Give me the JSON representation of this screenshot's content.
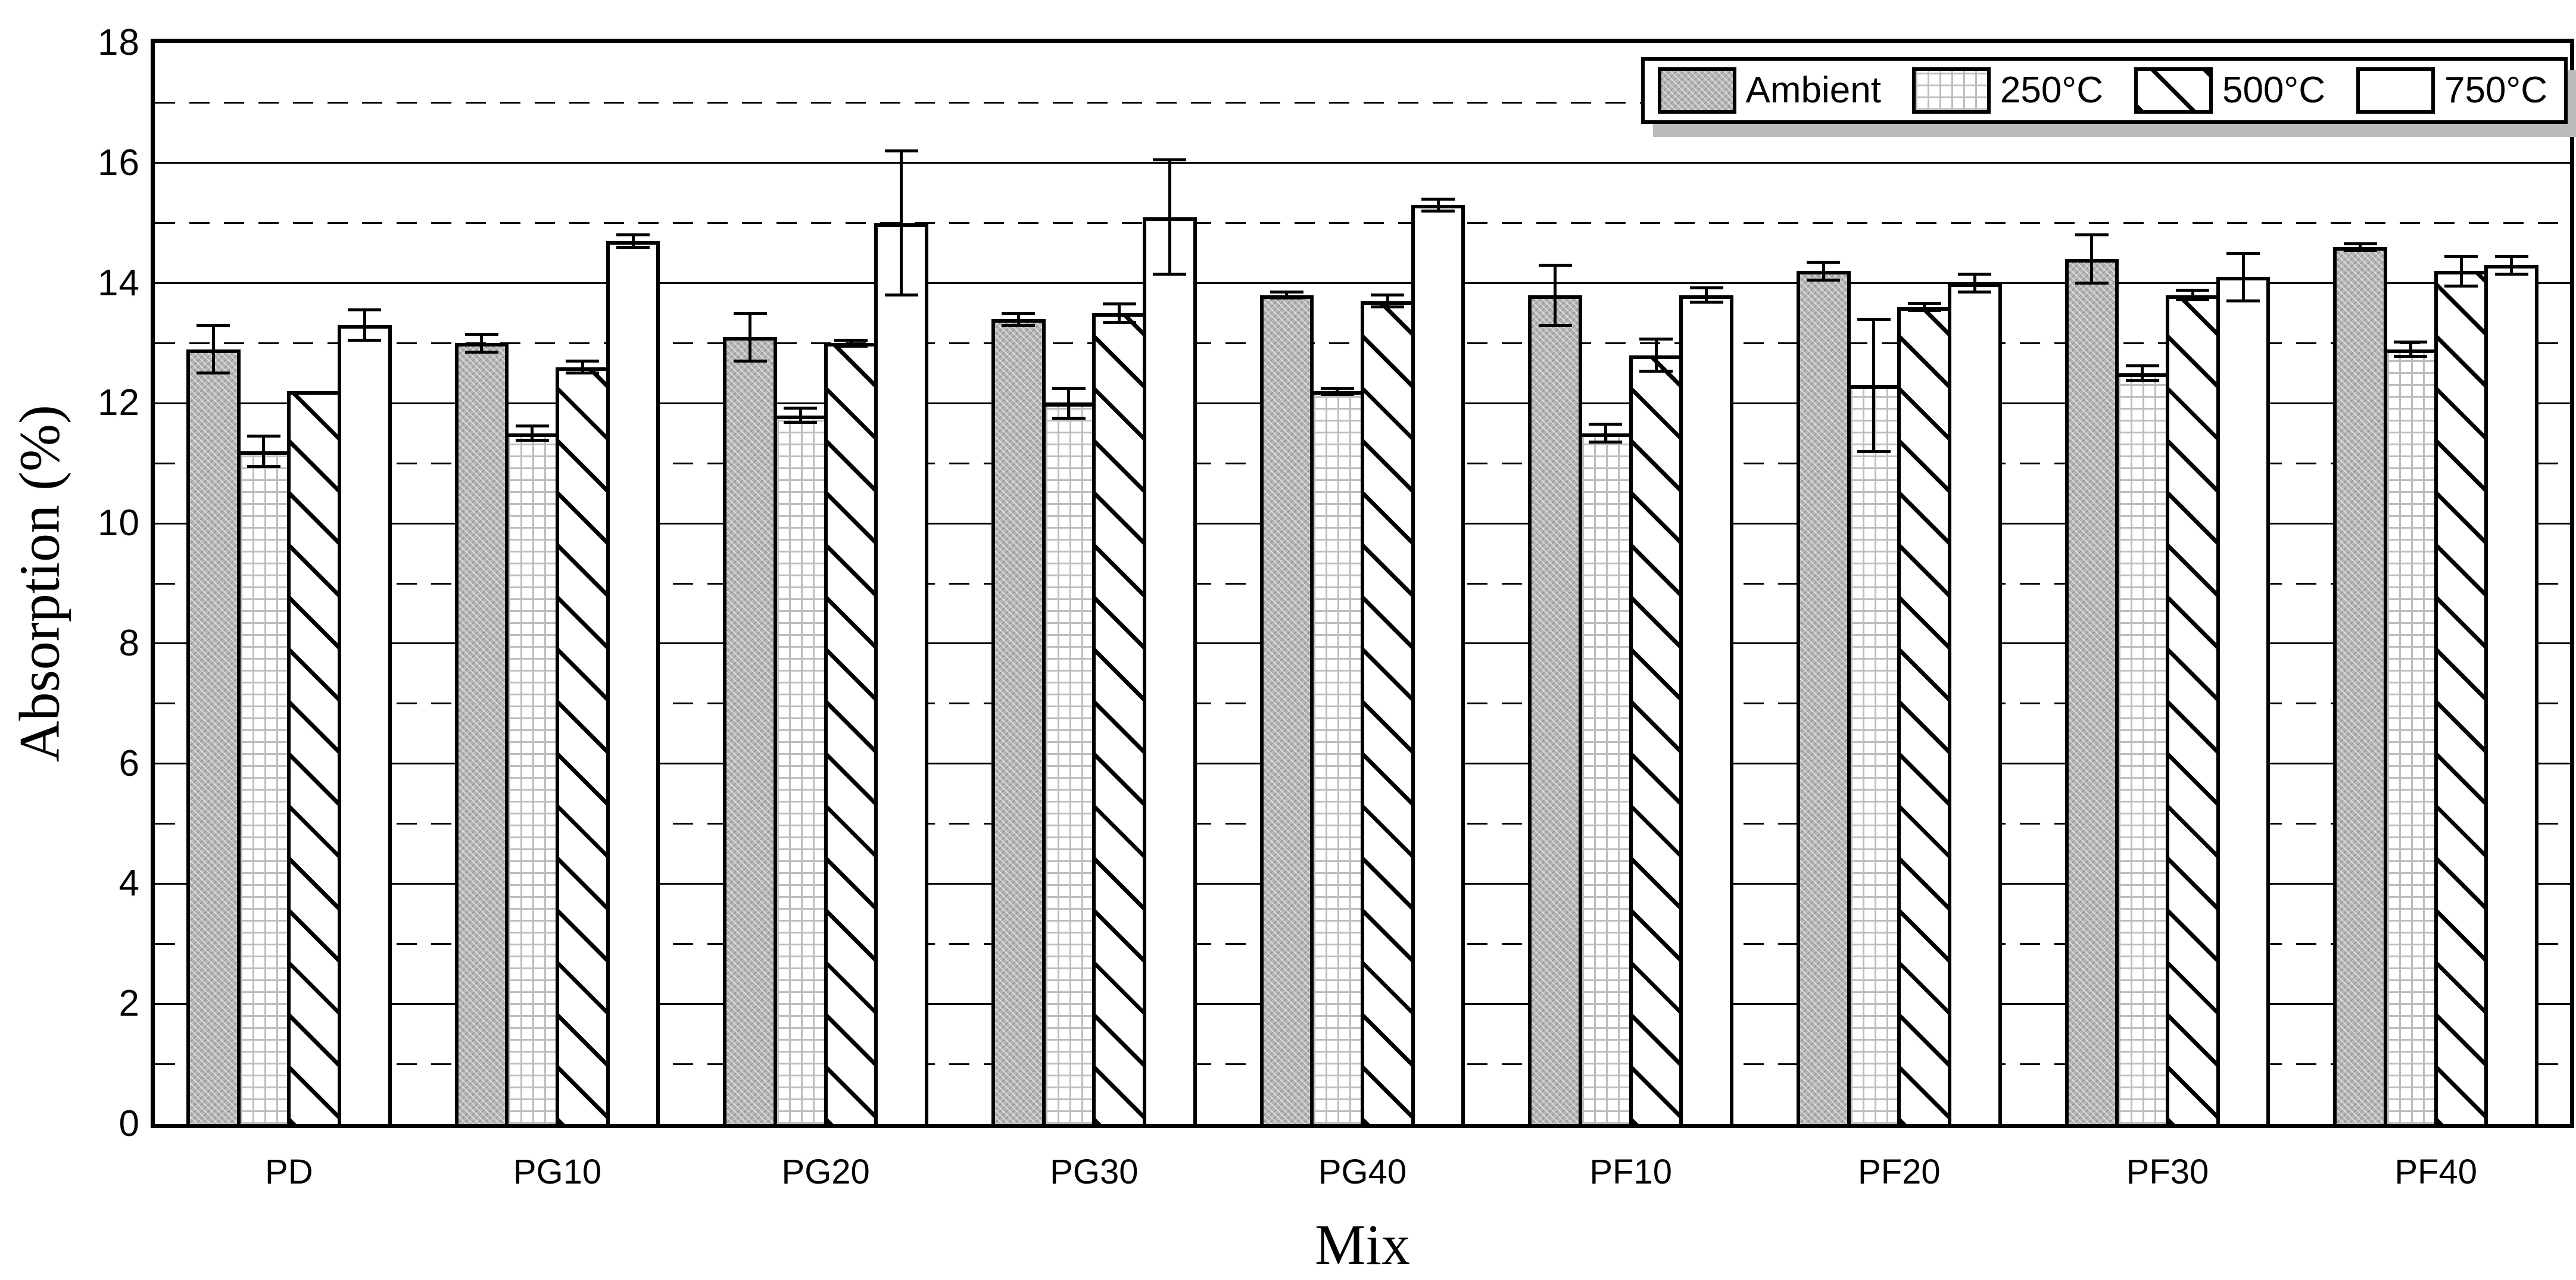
{
  "figure": {
    "background": "#ffffff",
    "frame_color": "#000000",
    "shadow_color": "#bcbcbc"
  },
  "y_axis": {
    "label": "Absorption (%)",
    "tick_labels": [
      "0",
      "2",
      "4",
      "6",
      "8",
      "10",
      "12",
      "14",
      "16",
      "18"
    ],
    "min": 0,
    "max": 18,
    "major_step": 2
  },
  "x_axis": {
    "label": "Mix"
  },
  "chart_data": {
    "type": "bar",
    "title": "",
    "xlabel": "Mix",
    "ylabel": "Absorption (%)",
    "ylim": [
      0,
      18
    ],
    "grid": {
      "horizontal_solid_at_even": true,
      "horizontal_dashed_at_odd": true,
      "vertical": false
    },
    "legend_position": "top-right",
    "error_bars": true,
    "categories": [
      "PD",
      "PG10",
      "PG20",
      "PG30",
      "PG40",
      "PF10",
      "PF20",
      "PF30",
      "PF40"
    ],
    "series": [
      {
        "name": "Ambient",
        "pattern": "dense-gray",
        "values": [
          12.9,
          13.0,
          13.1,
          13.4,
          13.8,
          13.8,
          14.2,
          14.4,
          14.6
        ],
        "errors": [
          0.4,
          0.15,
          0.4,
          0.1,
          0.05,
          0.5,
          0.15,
          0.4,
          0.05
        ]
      },
      {
        "name": "250°C",
        "pattern": "dotted-grid",
        "values": [
          11.2,
          11.5,
          11.8,
          12.0,
          12.2,
          11.5,
          12.3,
          12.5,
          12.9
        ],
        "errors": [
          0.25,
          0.12,
          0.12,
          0.25,
          0.05,
          0.15,
          1.1,
          0.12,
          0.12
        ]
      },
      {
        "name": "500°C",
        "pattern": "diagonal-hatch",
        "values": [
          12.2,
          12.6,
          13.0,
          13.5,
          13.7,
          12.8,
          13.6,
          13.8,
          14.2
        ],
        "errors": [
          0,
          0.1,
          0.05,
          0.15,
          0.1,
          0.27,
          0.06,
          0.08,
          0.25
        ]
      },
      {
        "name": "750°C",
        "pattern": "white",
        "values": [
          13.3,
          14.7,
          15.0,
          15.1,
          15.3,
          13.8,
          14.0,
          14.1,
          14.3
        ],
        "errors": [
          0.25,
          0.1,
          1.2,
          0.95,
          0.1,
          0.12,
          0.15,
          0.4,
          0.15
        ]
      }
    ]
  }
}
